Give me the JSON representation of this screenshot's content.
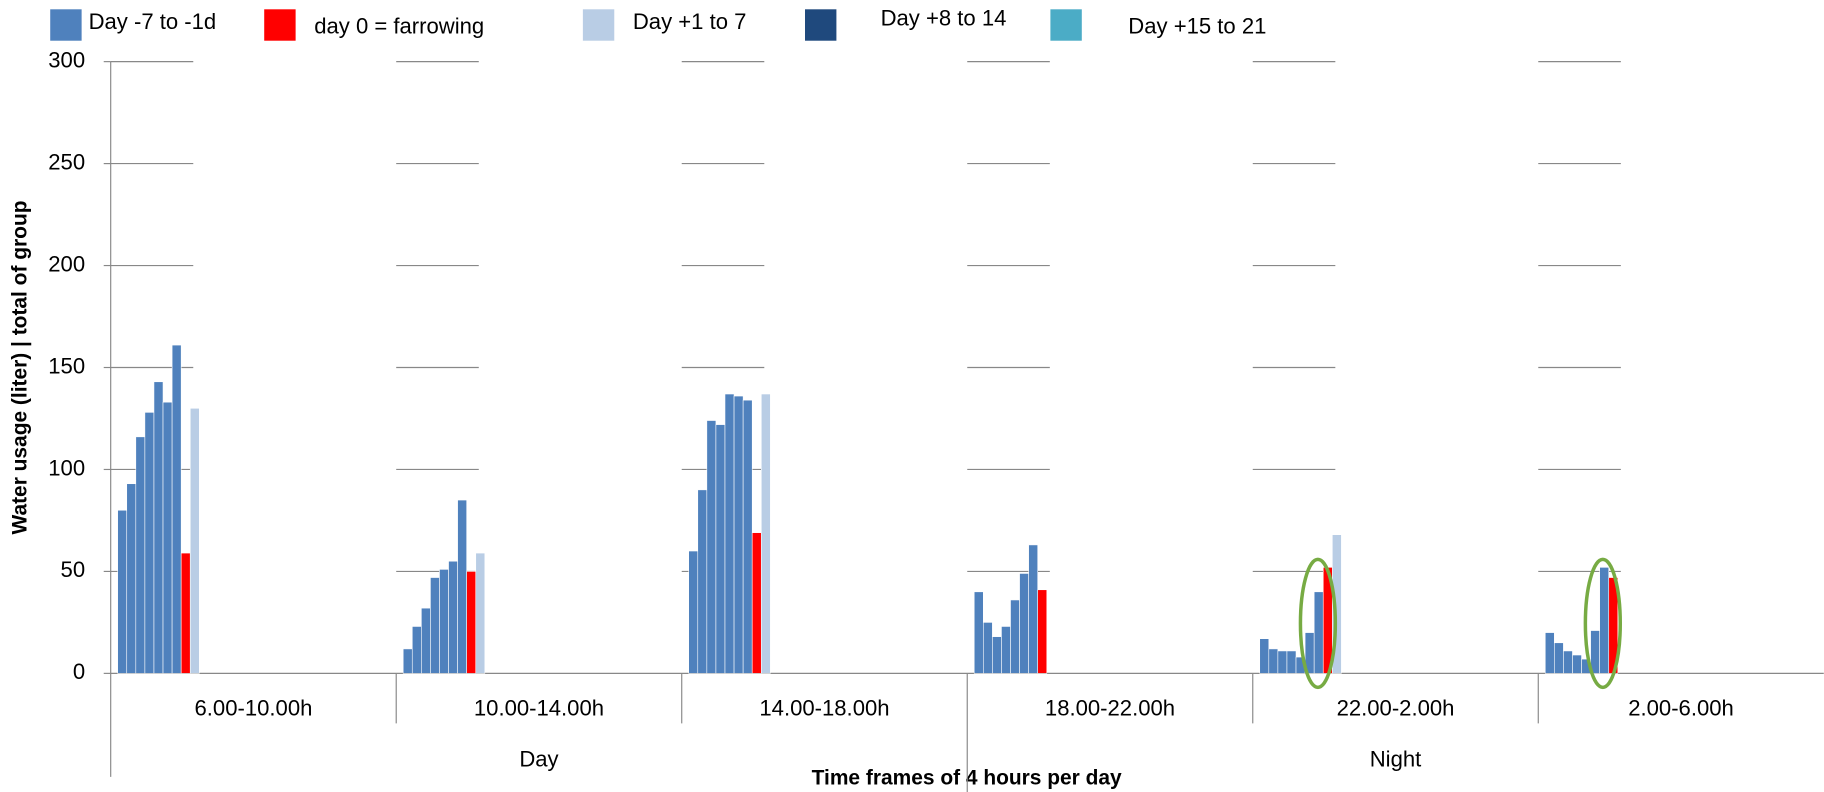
{
  "chart_data": {
    "type": "grouped-bar",
    "y_label": "Water usage (liter) | total of group",
    "x_label": "Time frames of 4 hours per day",
    "categories": [
      "6.00-10.00h",
      "10.00-14.00h",
      "14.00-18.00h",
      "18.00-22.00h",
      "22.00-2.00h",
      "2.00-6.00h"
    ],
    "groups": [
      {
        "label": "Day",
        "from": 0,
        "to": 2
      },
      {
        "label": "Night",
        "from": 3,
        "to": 5
      }
    ],
    "series": [
      {
        "name": "Day -7 to -1d",
        "color": "#4f81bd",
        "values": [
          [
            80,
            93,
            116,
            128,
            143,
            133,
            161
          ],
          [
            12,
            23,
            32,
            47,
            51,
            55,
            85
          ],
          [
            60,
            90,
            124,
            122,
            137,
            136,
            134
          ],
          [
            40,
            25,
            18,
            23,
            36,
            49,
            63
          ],
          [
            17,
            12,
            11,
            11,
            8,
            20,
            40
          ],
          [
            20,
            15,
            11,
            9,
            7,
            21,
            52
          ]
        ]
      },
      {
        "name": "day 0 = farrowing",
        "color": "#ff0000",
        "values": [
          [
            59
          ],
          [
            50
          ],
          [
            69
          ],
          [
            41
          ],
          [
            52
          ],
          [
            47
          ]
        ]
      },
      {
        "name": "Day +1 to 7",
        "color": "#b9cde5",
        "values": [
          [
            130
          ],
          [
            59
          ],
          [
            137
          ],
          [
            null
          ],
          [
            68
          ],
          [
            null
          ]
        ]
      },
      {
        "name": "Day +8 to 14",
        "color": "#1f497d",
        "values": [
          [
            null
          ],
          [
            null
          ],
          [
            null
          ],
          [
            null
          ],
          [
            null
          ],
          [
            null
          ]
        ]
      },
      {
        "name": "Day +15 to 21",
        "color": "#4bacc6",
        "values": [
          [
            null
          ],
          [
            null
          ],
          [
            null
          ],
          [
            null
          ],
          [
            null
          ],
          [
            null
          ]
        ]
      }
    ],
    "ylim": [
      0,
      300
    ],
    "yticks": [
      0,
      50,
      100,
      150,
      200,
      250,
      300
    ],
    "grid": true
  }
}
